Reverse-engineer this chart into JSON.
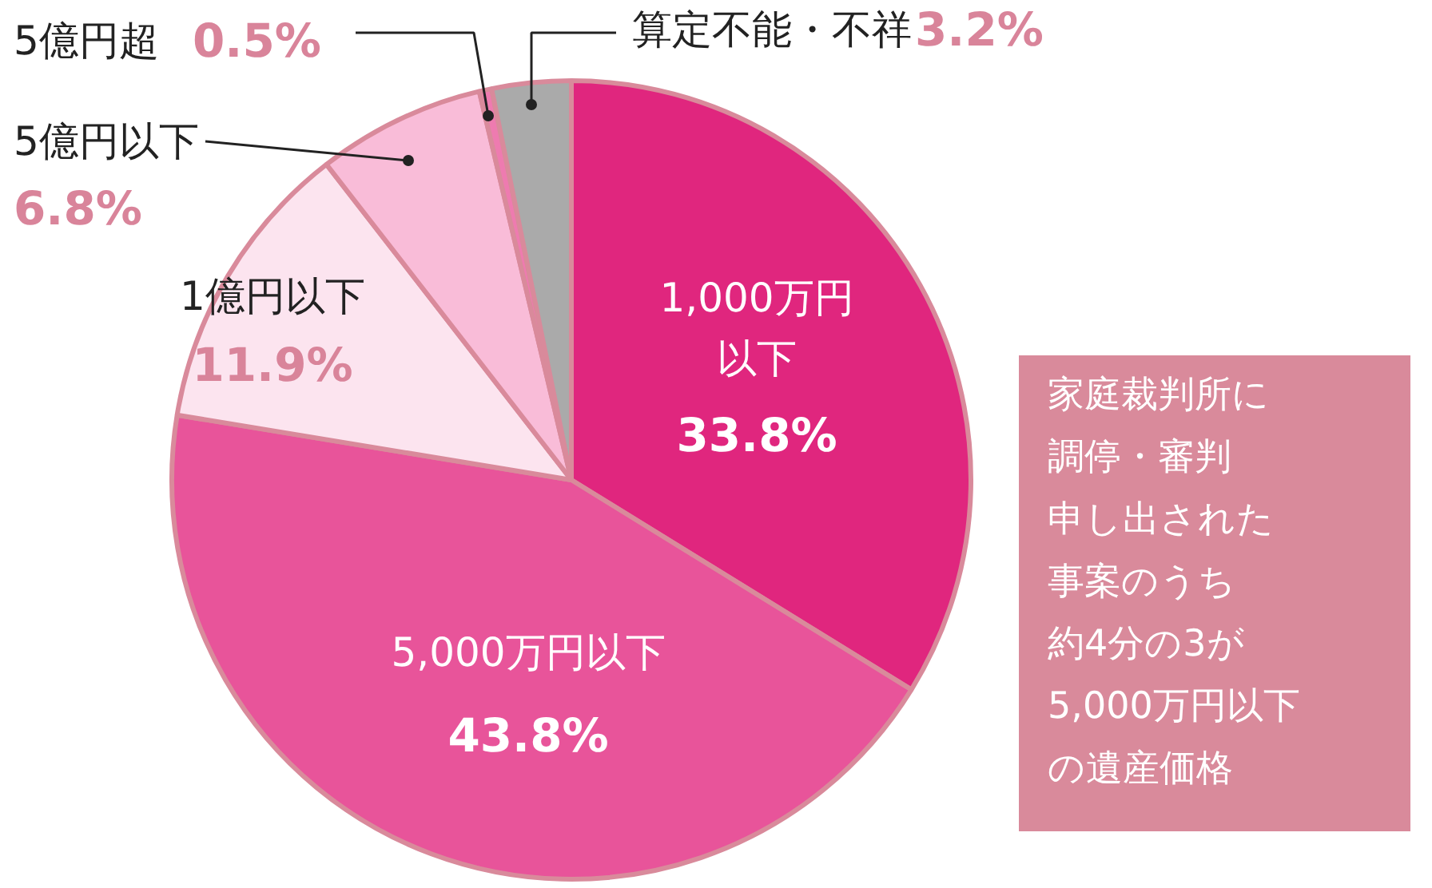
{
  "chart_data": {
    "type": "pie",
    "categories": [
      "1,000万円以下",
      "5,000万円以下",
      "1億円以下",
      "5億円以下",
      "5億円超",
      "算定不能・不祥"
    ],
    "values": [
      33.8,
      43.8,
      11.9,
      6.8,
      0.5,
      3.2
    ],
    "value_labels": [
      "33.8%",
      "43.8%",
      "11.9%",
      "6.8%",
      "0.5%",
      "3.2%"
    ],
    "colors": [
      "#e0267e",
      "#e8549a",
      "#fce4ef",
      "#f9bcd8",
      "#ee7bb0",
      "#aaaaaa"
    ],
    "annotations": [
      "家庭裁判所に",
      "調停・審判",
      "申し出された",
      "事案のうち",
      "約4分の3が",
      "5,000万円以下",
      "の遺産価格"
    ]
  }
}
